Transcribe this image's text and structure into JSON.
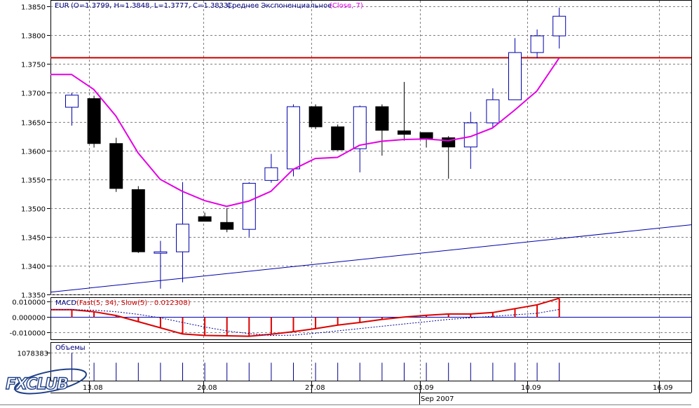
{
  "chart_data": [
    {
      "type": "candlestick",
      "symbol": "EUR",
      "ohlc_readout": "(O=1.3799, H=1.3848, L=1.3777, C=1.3833)",
      "indicator_label": "Среднее Экспоненциальное",
      "indicator_params": "(Close, 7)",
      "y_ticks": [
        "1.3850",
        "1.3800",
        "1.3750",
        "1.3700",
        "1.3650",
        "1.3600",
        "1.3550",
        "1.3500",
        "1.3450",
        "1.3400",
        "1.3350"
      ],
      "ylim": [
        1.335,
        1.386
      ],
      "candles": [
        {
          "o": 1.3675,
          "h": 1.37,
          "l": 1.3643,
          "c": 1.3696
        },
        {
          "o": 1.369,
          "h": 1.3695,
          "l": 1.3605,
          "c": 1.3612
        },
        {
          "o": 1.3612,
          "h": 1.3622,
          "l": 1.3528,
          "c": 1.3534
        },
        {
          "o": 1.3532,
          "h": 1.3538,
          "l": 1.3422,
          "c": 1.3424
        },
        {
          "o": 1.3424,
          "h": 1.3443,
          "l": 1.336,
          "c": 1.3424
        },
        {
          "o": 1.3424,
          "h": 1.3545,
          "l": 1.3371,
          "c": 1.3472
        },
        {
          "o": 1.3485,
          "h": 1.3492,
          "l": 1.3477,
          "c": 1.3477
        },
        {
          "o": 1.3475,
          "h": 1.35,
          "l": 1.3458,
          "c": 1.3463
        },
        {
          "o": 1.3463,
          "h": 1.3545,
          "l": 1.345,
          "c": 1.3543
        },
        {
          "o": 1.3548,
          "h": 1.3594,
          "l": 1.3544,
          "c": 1.357
        },
        {
          "o": 1.3568,
          "h": 1.368,
          "l": 1.3555,
          "c": 1.3676
        },
        {
          "o": 1.3676,
          "h": 1.368,
          "l": 1.3637,
          "c": 1.3641
        },
        {
          "o": 1.3641,
          "h": 1.3645,
          "l": 1.36,
          "c": 1.3601
        },
        {
          "o": 1.3603,
          "h": 1.3678,
          "l": 1.3562,
          "c": 1.3676
        },
        {
          "o": 1.3676,
          "h": 1.368,
          "l": 1.3591,
          "c": 1.3635
        },
        {
          "o": 1.3634,
          "h": 1.3719,
          "l": 1.3617,
          "c": 1.3628
        },
        {
          "o": 1.3631,
          "h": 1.3631,
          "l": 1.3605,
          "c": 1.3621
        },
        {
          "o": 1.3622,
          "h": 1.3625,
          "l": 1.3551,
          "c": 1.3606
        },
        {
          "o": 1.3606,
          "h": 1.3667,
          "l": 1.3568,
          "c": 1.3648
        },
        {
          "o": 1.3648,
          "h": 1.3708,
          "l": 1.364,
          "c": 1.3688
        },
        {
          "o": 1.3688,
          "h": 1.3795,
          "l": 1.3688,
          "c": 1.377
        },
        {
          "o": 1.377,
          "h": 1.381,
          "l": 1.376,
          "c": 1.3799
        },
        {
          "o": 1.3799,
          "h": 1.3848,
          "l": 1.3777,
          "c": 1.3833
        }
      ],
      "ema7": [
        1.3732,
        1.3706,
        1.366,
        1.3596,
        1.355,
        1.3529,
        1.3513,
        1.3503,
        1.3512,
        1.3529,
        1.3567,
        1.3586,
        1.3588,
        1.3609,
        1.3616,
        1.3619,
        1.362,
        1.3617,
        1.3624,
        1.3639,
        1.367,
        1.3703,
        1.376
      ],
      "horizontal_line": 1.3761,
      "trendline": {
        "start": 1.3354,
        "end": 1.3471
      },
      "colors": {
        "bull_body": "#ffffff",
        "bear_body": "#000000",
        "wick": "#000000",
        "bull_outline": "#0000aa",
        "ema": "#e400e4",
        "hline": "#cc0000",
        "trendline": "#0000aa",
        "grid": "#808080"
      }
    },
    {
      "type": "bar",
      "title_prefix": "MACD",
      "title_params": "(Fast(5, 34), Slow(5) : 0.012308)",
      "y_ticks": [
        "0.010000",
        "0.000000",
        "-0.010000"
      ],
      "ylim": [
        -0.0145,
        0.0125
      ],
      "values": [
        0.0048,
        0.0035,
        0.001,
        -0.003,
        -0.007,
        -0.011,
        -0.012,
        -0.0122,
        -0.0125,
        -0.0112,
        -0.0095,
        -0.0075,
        -0.0052,
        -0.0035,
        -0.0015,
        0.0,
        0.0012,
        0.002,
        0.002,
        0.003,
        0.0055,
        0.008,
        0.0123
      ],
      "signal": [
        0.0048,
        0.0045,
        0.0035,
        0.0018,
        -0.0005,
        -0.0035,
        -0.0065,
        -0.009,
        -0.0108,
        -0.012,
        -0.0118,
        -0.0105,
        -0.009,
        -0.0075,
        -0.006,
        -0.0045,
        -0.003,
        -0.0015,
        -0.0005,
        0.0005,
        0.0015,
        0.0025,
        0.005
      ],
      "colors": {
        "bars": "#dd0000",
        "signal": "#000099",
        "zero": "#0000aa"
      }
    },
    {
      "type": "bar",
      "title": "Объемы",
      "y_ticks": [
        "1078383"
      ],
      "ylim": [
        0,
        1078383
      ],
      "values": [
        1078383,
        690000,
        690000,
        690000,
        690000,
        690000,
        690000,
        690000,
        690000,
        690000,
        690000,
        690000,
        690000,
        690000,
        690000,
        690000,
        690000,
        690000,
        690000,
        690000,
        690000,
        690000,
        690000
      ],
      "colors": {
        "bars": "#00008b"
      }
    }
  ],
  "x_axis": {
    "labels": [
      "13.08",
      "20.08",
      "27.08",
      "03.09",
      "10.09",
      "16.09"
    ],
    "month_label": "Sep 2007"
  },
  "logo": {
    "text": "FXCLUB"
  }
}
